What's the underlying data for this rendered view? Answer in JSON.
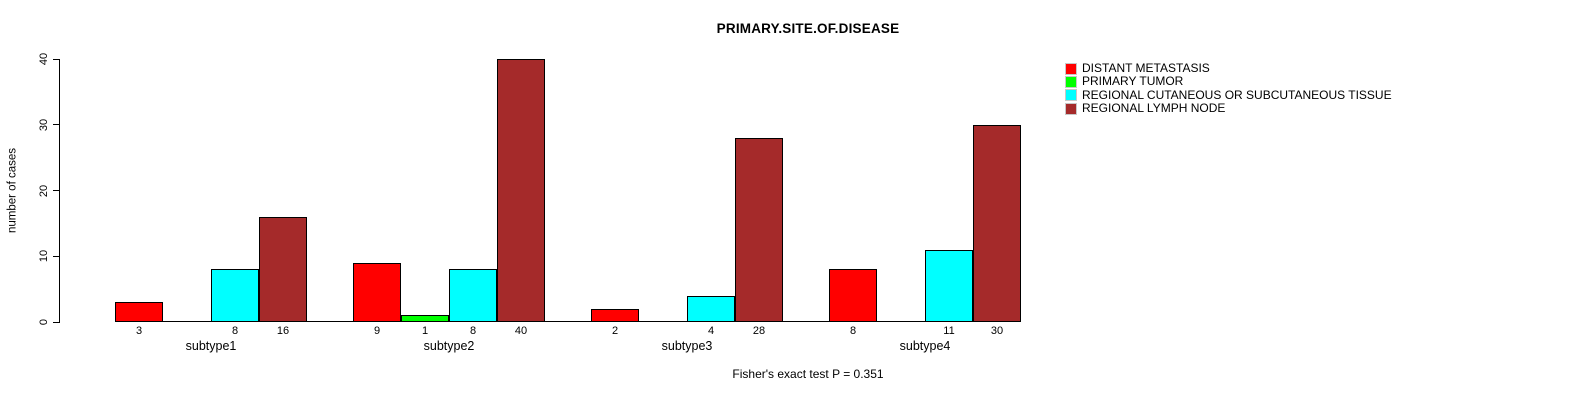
{
  "title": "PRIMARY.SITE.OF.DISEASE",
  "footnote": "Fisher's exact test P = 0.351",
  "chart_data": {
    "type": "bar",
    "title": "PRIMARY.SITE.OF.DISEASE",
    "xlabel": "",
    "ylabel": "number of cases",
    "ylim": [
      0,
      40
    ],
    "yticks": [
      0,
      10,
      20,
      30,
      40
    ],
    "grid": false,
    "legend_position": "top-right",
    "bar_value_labels_shown": true,
    "categories": [
      "subtype1",
      "subtype2",
      "subtype3",
      "subtype4"
    ],
    "series": [
      {
        "name": "DISTANT METASTASIS",
        "color": "#FF0000",
        "values": [
          3,
          9,
          2,
          8
        ]
      },
      {
        "name": "PRIMARY TUMOR",
        "color": "#00FF00",
        "values": [
          0,
          1,
          0,
          0
        ]
      },
      {
        "name": "REGIONAL CUTANEOUS OR SUBCUTANEOUS TISSUE",
        "color": "#00FFFF",
        "values": [
          8,
          8,
          4,
          11
        ]
      },
      {
        "name": "REGIONAL LYMPH NODE",
        "color": "#A52A2A",
        "values": [
          16,
          40,
          28,
          30
        ]
      }
    ],
    "annotation": "Fisher's exact test P = 0.351"
  }
}
